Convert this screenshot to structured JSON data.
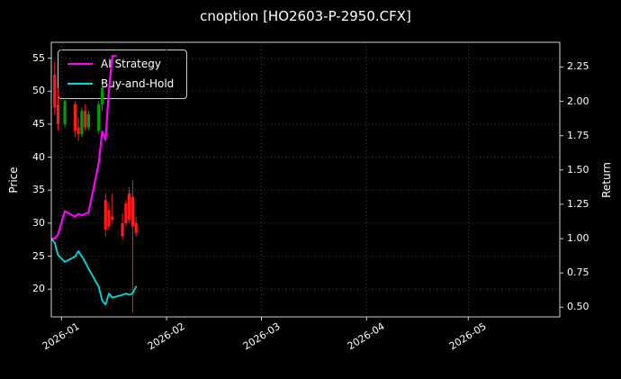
{
  "chart_data": {
    "type": "candlestick+line",
    "title": "cnoption [HO2603-P-2950.CFX]",
    "ylabel_left": "Price",
    "ylabel_right": "Return",
    "x_ticks": [
      {
        "label": "2026-01",
        "date": "2026-01-01"
      },
      {
        "label": "2026-02",
        "date": "2026-02-01"
      },
      {
        "label": "2026-03",
        "date": "2026-03-01"
      },
      {
        "label": "2026-04",
        "date": "2026-04-01"
      },
      {
        "label": "2026-05",
        "date": "2026-05-01"
      }
    ],
    "price_ticks": [
      20,
      25,
      30,
      35,
      40,
      45,
      50,
      55
    ],
    "return_ticks": [
      "0.50",
      "0.75",
      "1.00",
      "1.25",
      "1.50",
      "1.75",
      "2.00",
      "2.25"
    ],
    "x_domain": [
      "2025-12-29",
      "2026-05-28"
    ],
    "price_domain": [
      15.8,
      57.4
    ],
    "return_domain": [
      0.43,
      2.43
    ],
    "grid": "dotted",
    "legend_position": "upper-left",
    "colors": {
      "background": "#000000",
      "up": "#00a000",
      "down": "#ff1a1a",
      "grid": "#3d3d3d",
      "spine": "#cfcfcf",
      "text": "#ffffff"
    },
    "candles": [
      {
        "date": "2025-12-30",
        "o": 52.5,
        "h": 54.5,
        "l": 46.5,
        "c": 47.5
      },
      {
        "date": "2025-12-31",
        "o": 48.0,
        "h": 50.5,
        "l": 44.0,
        "c": 45.0
      },
      {
        "date": "2026-01-02",
        "o": 45.0,
        "h": 49.0,
        "l": 44.5,
        "c": 48.5
      },
      {
        "date": "2026-01-05",
        "o": 48.0,
        "h": 48.5,
        "l": 43.0,
        "c": 44.0
      },
      {
        "date": "2026-01-06",
        "o": 44.5,
        "h": 46.0,
        "l": 42.5,
        "c": 43.5
      },
      {
        "date": "2026-01-07",
        "o": 43.5,
        "h": 47.5,
        "l": 43.0,
        "c": 47.0
      },
      {
        "date": "2026-01-08",
        "o": 47.0,
        "h": 48.0,
        "l": 44.0,
        "c": 44.5
      },
      {
        "date": "2026-01-09",
        "o": 44.5,
        "h": 47.0,
        "l": 44.0,
        "c": 46.5
      },
      {
        "date": "2026-01-12",
        "o": 44.0,
        "h": 48.5,
        "l": 43.5,
        "c": 48.0
      },
      {
        "date": "2026-01-13",
        "o": 48.0,
        "h": 51.0,
        "l": 47.0,
        "c": 50.5
      },
      {
        "date": "2026-01-14",
        "o": 33.5,
        "h": 34.5,
        "l": 28.0,
        "c": 29.0
      },
      {
        "date": "2026-01-15",
        "o": 32.0,
        "h": 33.0,
        "l": 29.0,
        "c": 29.5
      },
      {
        "date": "2026-01-16",
        "o": 31.0,
        "h": 34.5,
        "l": 30.0,
        "c": 30.5
      },
      {
        "date": "2026-01-19",
        "o": 30.0,
        "h": 31.5,
        "l": 27.5,
        "c": 28.0
      },
      {
        "date": "2026-01-20",
        "o": 33.0,
        "h": 33.5,
        "l": 29.5,
        "c": 30.0
      },
      {
        "date": "2026-01-21",
        "o": 34.5,
        "h": 35.5,
        "l": 30.0,
        "c": 30.5
      },
      {
        "date": "2026-01-22",
        "o": 34.0,
        "h": 36.5,
        "l": 16.5,
        "c": 29.5
      },
      {
        "date": "2026-01-23",
        "o": 30.0,
        "h": 31.0,
        "l": 28.0,
        "c": 28.5
      }
    ],
    "series": [
      {
        "name": "AI Strategy",
        "slug": "ai-strategy-line",
        "color": "#ff00ff",
        "width": 2.2,
        "axis": "return",
        "points": [
          [
            "2025-12-29",
            1.0
          ],
          [
            "2025-12-30",
            1.0
          ],
          [
            "2025-12-31",
            1.03
          ],
          [
            "2026-01-02",
            1.2
          ],
          [
            "2026-01-05",
            1.16
          ],
          [
            "2026-01-06",
            1.18
          ],
          [
            "2026-01-07",
            1.17
          ],
          [
            "2026-01-08",
            1.18
          ],
          [
            "2026-01-09",
            1.19
          ],
          [
            "2026-01-12",
            1.55
          ],
          [
            "2026-01-13",
            1.78
          ],
          [
            "2026-01-14",
            1.72
          ],
          [
            "2026-01-15",
            2.08
          ],
          [
            "2026-01-16",
            2.33
          ],
          [
            "2026-01-17",
            2.33
          ]
        ]
      },
      {
        "name": "Buy-and-Hold",
        "slug": "buy-and-hold-line",
        "color": "#00dddd",
        "width": 1.8,
        "axis": "return",
        "points": [
          [
            "2025-12-29",
            1.0
          ],
          [
            "2025-12-30",
            0.97
          ],
          [
            "2025-12-31",
            0.88
          ],
          [
            "2026-01-02",
            0.83
          ],
          [
            "2026-01-05",
            0.87
          ],
          [
            "2026-01-06",
            0.91
          ],
          [
            "2026-01-07",
            0.87
          ],
          [
            "2026-01-08",
            0.83
          ],
          [
            "2026-01-09",
            0.78
          ],
          [
            "2026-01-12",
            0.65
          ],
          [
            "2026-01-13",
            0.55
          ],
          [
            "2026-01-14",
            0.52
          ],
          [
            "2026-01-15",
            0.6
          ],
          [
            "2026-01-16",
            0.57
          ],
          [
            "2026-01-19",
            0.59
          ],
          [
            "2026-01-20",
            0.6
          ],
          [
            "2026-01-21",
            0.59
          ],
          [
            "2026-01-22",
            0.6
          ],
          [
            "2026-01-23",
            0.65
          ]
        ]
      }
    ]
  }
}
